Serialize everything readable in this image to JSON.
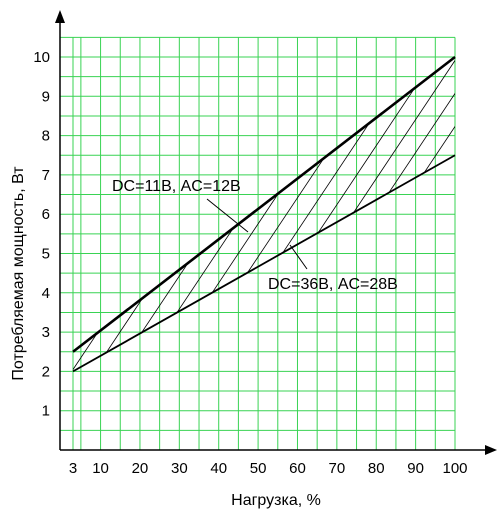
{
  "chart_data": {
    "type": "area",
    "title": "",
    "xlabel": "Нагрузка, %",
    "ylabel": "Потребляемая мощность, Вт",
    "xlim": [
      3,
      100
    ],
    "ylim": [
      0,
      10
    ],
    "x_ticks": [
      3,
      10,
      20,
      30,
      40,
      50,
      60,
      70,
      80,
      90,
      100
    ],
    "y_ticks": [
      1,
      2,
      3,
      4,
      5,
      6,
      7,
      8,
      9,
      10
    ],
    "grid": true,
    "legend": "none",
    "colors": {
      "grid": "#39d353",
      "lines": "#000000",
      "hatch": "#000000"
    },
    "series": [
      {
        "name": "DC=11В, AC=12В",
        "x": [
          3,
          100
        ],
        "y": [
          2.5,
          10.0
        ]
      },
      {
        "name": "DC=36В, AC=28В",
        "x": [
          3,
          100
        ],
        "y": [
          2.0,
          7.5
        ]
      }
    ],
    "fill_between": "hatched band between the two series",
    "annotations": [
      {
        "text": "DC=11В, AC=12В",
        "points_to": "upper line"
      },
      {
        "text": "DC=36В, AC=28В",
        "points_to": "lower line"
      }
    ]
  }
}
